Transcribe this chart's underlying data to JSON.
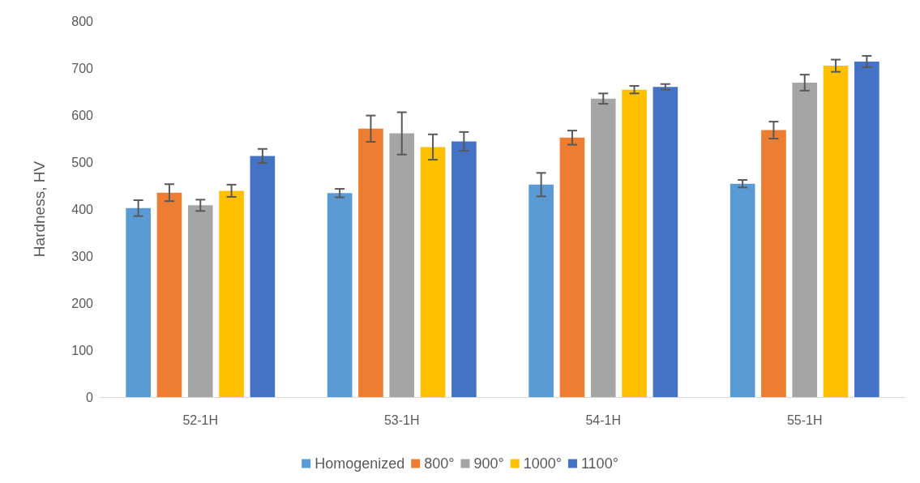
{
  "chart_data": {
    "type": "bar",
    "ylabel": "Hardness, HV",
    "categories": [
      "52-1H",
      "53-1H",
      "54-1H",
      "55-1H"
    ],
    "series": [
      {
        "name": "Homogenized",
        "color": "#5b9bd5",
        "values": [
          402,
          434,
          452,
          454
        ],
        "errors": [
          17,
          9,
          25,
          8
        ]
      },
      {
        "name": "800°",
        "color": "#ed7d31",
        "values": [
          435,
          571,
          552,
          568
        ],
        "errors": [
          18,
          28,
          15,
          18
        ]
      },
      {
        "name": "900°",
        "color": "#a5a5a5",
        "values": [
          408,
          561,
          635,
          669
        ],
        "errors": [
          12,
          45,
          11,
          17
        ]
      },
      {
        "name": "1000°",
        "color": "#ffc000",
        "values": [
          439,
          532,
          654,
          705
        ],
        "errors": [
          13,
          27,
          8,
          13
        ]
      },
      {
        "name": "1100°",
        "color": "#4472c4",
        "values": [
          513,
          544,
          660,
          714
        ],
        "errors": [
          15,
          20,
          6,
          12
        ]
      }
    ],
    "ylim": [
      0,
      800
    ],
    "yticks": [
      0,
      100,
      200,
      300,
      400,
      500,
      600,
      700,
      800
    ],
    "grid": false,
    "legend": "bottom"
  }
}
